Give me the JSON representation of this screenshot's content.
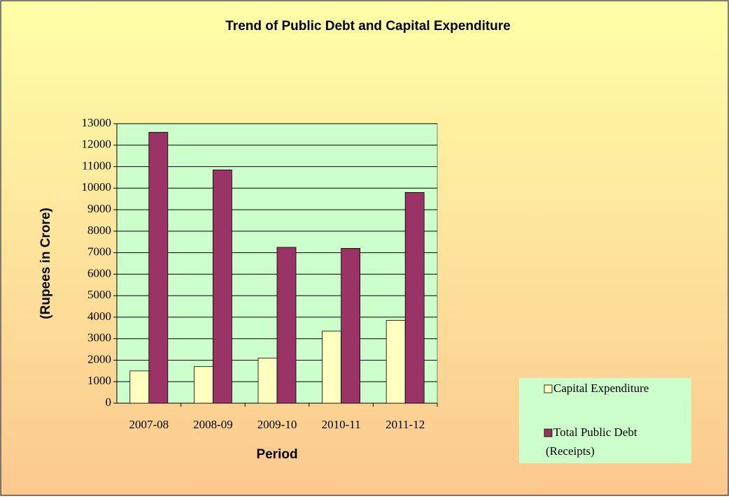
{
  "chart_data": {
    "type": "bar",
    "title": "Trend of Public Debt and Capital Expenditure",
    "x_label": "Period",
    "y_label": "(Rupees in Crore)",
    "categories": [
      "2007-08",
      "2008-09",
      "2009-10",
      "2010-11",
      "2011-12"
    ],
    "series": [
      {
        "name": "Capital Expenditure",
        "color": "#ffffc0",
        "values": [
          1500,
          1700,
          2100,
          3350,
          3850
        ]
      },
      {
        "name": "Total Public Debt (Receipts)",
        "color": "#993366",
        "values": [
          12600,
          10850,
          7250,
          7200,
          9800
        ]
      }
    ],
    "ylim": [
      0,
      13000
    ],
    "yticks": [
      0,
      1000,
      2000,
      3000,
      4000,
      5000,
      6000,
      7000,
      8000,
      9000,
      10000,
      11000,
      12000,
      13000
    ],
    "grid": true,
    "legend": "bottom-right"
  }
}
